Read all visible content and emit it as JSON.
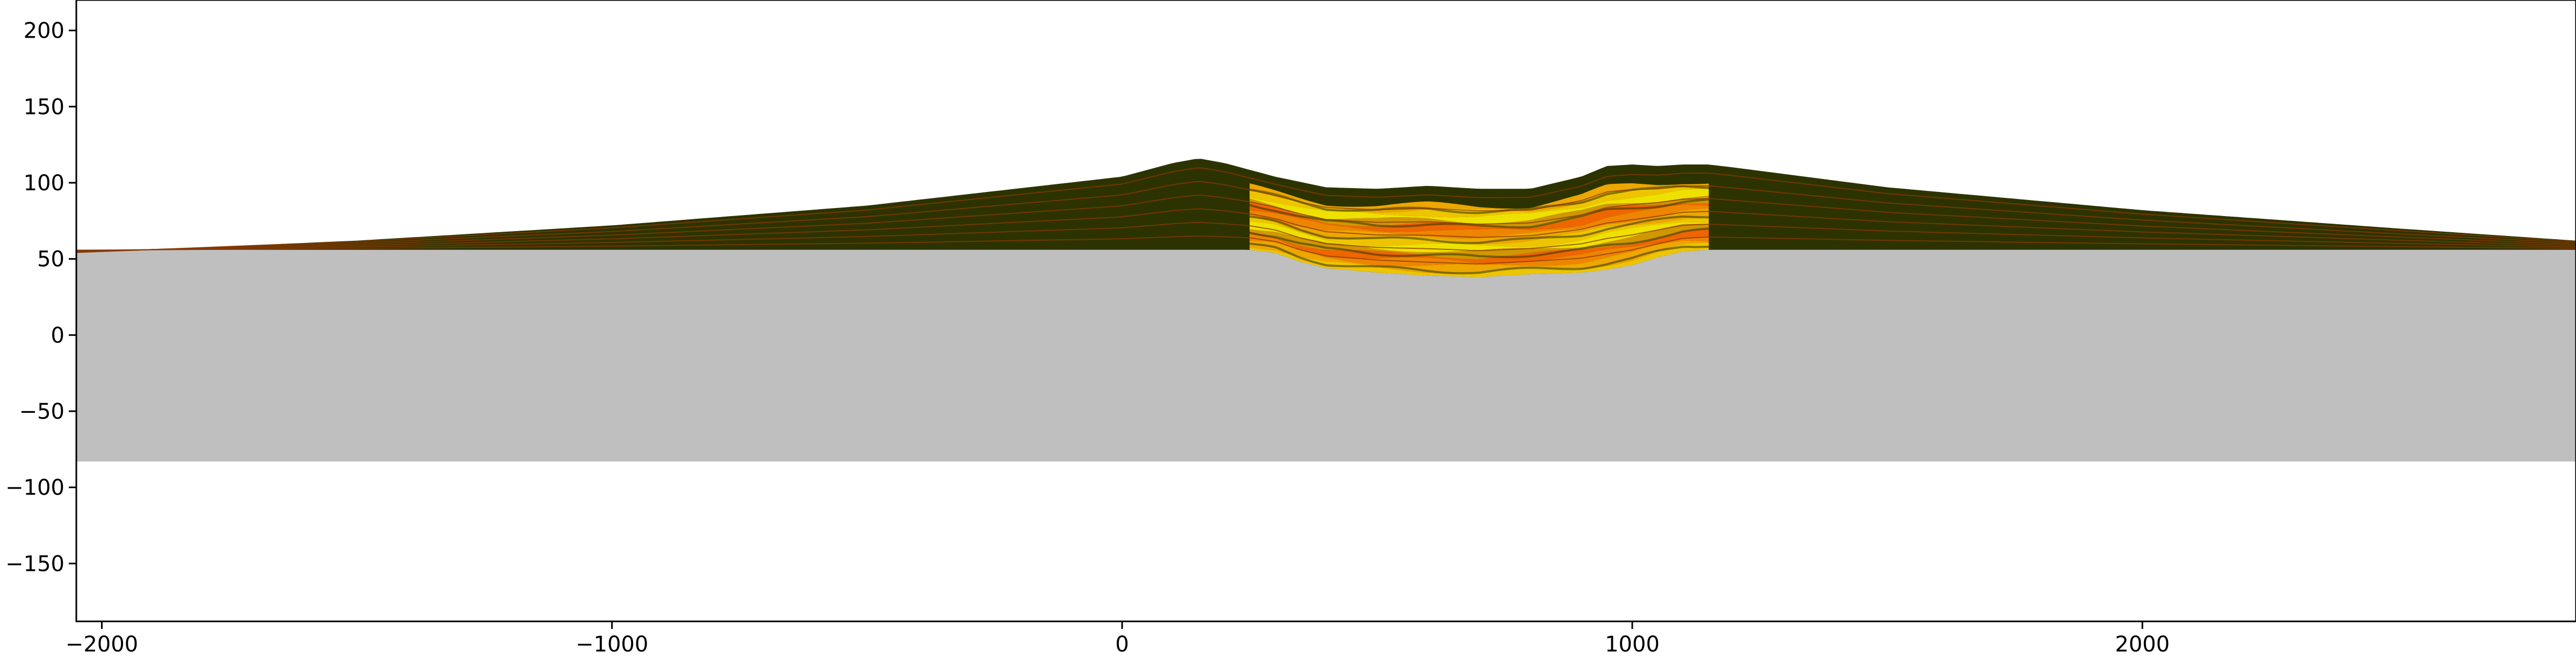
{
  "chart_data": {
    "type": "area",
    "xlim": [
      -2050,
      2850
    ],
    "ylim": [
      -188,
      220
    ],
    "x_ticks": [
      {
        "value": -2000,
        "label": "−2000"
      },
      {
        "value": -1000,
        "label": "−1000"
      },
      {
        "value": 0,
        "label": "0"
      },
      {
        "value": 1000,
        "label": "1000"
      },
      {
        "value": 2000,
        "label": "2000"
      }
    ],
    "y_ticks": [
      {
        "value": 200,
        "label": "200"
      },
      {
        "value": 150,
        "label": "150"
      },
      {
        "value": 100,
        "label": "100"
      },
      {
        "value": 50,
        "label": "50"
      },
      {
        "value": 0,
        "label": "0"
      },
      {
        "value": -50,
        "label": "−50"
      },
      {
        "value": -100,
        "label": "−100"
      },
      {
        "value": -150,
        "label": "−150"
      }
    ],
    "grid": false,
    "basement": {
      "top": 56,
      "bottom": -83,
      "color": "#bfbfbf"
    },
    "surface": {
      "color": "#2d3300",
      "x": [
        -2050,
        -1500,
        -1000,
        -500,
        0,
        100,
        150,
        200,
        300,
        400,
        500,
        600,
        700,
        800,
        900,
        950,
        1000,
        1050,
        1100,
        1150,
        1200,
        1500,
        2000,
        2500,
        2850
      ],
      "top": [
        54,
        62,
        72,
        85,
        104,
        113,
        116,
        113,
        104,
        97,
        96,
        98,
        96,
        96,
        104,
        111,
        112,
        111,
        112,
        112,
        110,
        97,
        82,
        70,
        62
      ]
    },
    "channel": {
      "x": [
        250,
        300,
        350,
        400,
        500,
        600,
        700,
        800,
        900,
        950,
        1000,
        1050,
        1100,
        1150
      ],
      "bottom": [
        56,
        54,
        48,
        44,
        41,
        39,
        38,
        40,
        41,
        43,
        46,
        51,
        55,
        56
      ]
    },
    "layer_colors": [
      "#ffd000",
      "#ffb000",
      "#ff8c00",
      "#ff6a00",
      "#e0a000",
      "#fff000"
    ],
    "stratum_line_color": "#8a3a00",
    "stratum_fractions": [
      0.15,
      0.3,
      0.45,
      0.6,
      0.75,
      0.9
    ]
  }
}
